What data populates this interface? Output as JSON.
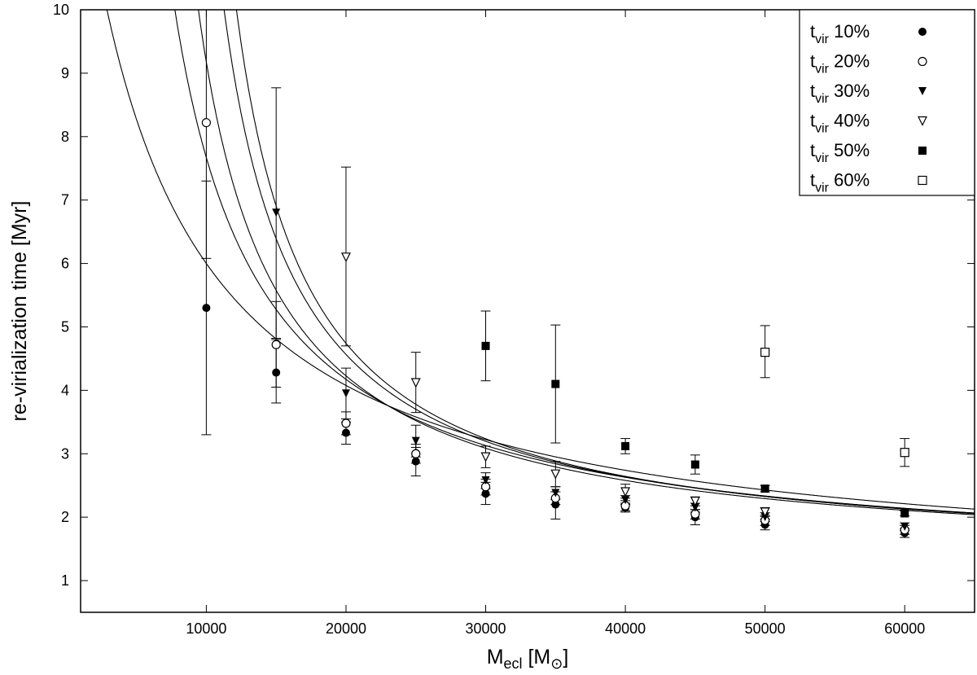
{
  "chart_data": {
    "type": "scatter",
    "xlabel": {
      "main": "M",
      "sub": "ecl",
      "unit_open": " [M",
      "unit_sub": "⊙",
      "unit_close": "]"
    },
    "ylabel": "re-virialization time [Myr]",
    "xlim": [
      1000,
      65000
    ],
    "ylim": [
      0.5,
      10
    ],
    "xticks": [
      10000,
      20000,
      30000,
      40000,
      50000,
      60000
    ],
    "yticks": [
      1,
      2,
      3,
      4,
      5,
      6,
      7,
      8,
      9,
      10
    ],
    "grid": false,
    "legend_position": "top-right",
    "series": [
      {
        "name_main": "t",
        "name_sub": "vir",
        "name_rest": " 10%",
        "marker": "filled-circle",
        "points": [
          {
            "x": 10000,
            "y": 5.3,
            "lo": 3.3,
            "hi": 7.3
          },
          {
            "x": 15000,
            "y": 4.28,
            "lo": 3.8,
            "hi": 4.8
          },
          {
            "x": 20000,
            "y": 3.33,
            "lo": 3.15,
            "hi": 3.5
          },
          {
            "x": 25000,
            "y": 2.88,
            "lo": 2.65,
            "hi": 3.1
          },
          {
            "x": 30000,
            "y": 2.37,
            "lo": 2.2,
            "hi": 2.55
          },
          {
            "x": 35000,
            "y": 2.2,
            "lo": 1.97,
            "hi": 2.4
          },
          {
            "x": 40000,
            "y": 2.15,
            "lo": 2.08,
            "hi": 2.22
          },
          {
            "x": 45000,
            "y": 2.0,
            "lo": 1.88,
            "hi": 2.12
          },
          {
            "x": 50000,
            "y": 1.88,
            "lo": 1.8,
            "hi": 1.97
          },
          {
            "x": 60000,
            "y": 1.75,
            "lo": 1.68,
            "hi": 1.82
          }
        ]
      },
      {
        "name_main": "t",
        "name_sub": "vir",
        "name_rest": " 20%",
        "marker": "open-circle",
        "points": [
          {
            "x": 10000,
            "y": 8.22,
            "lo": 6.08,
            "hi": 10.4
          },
          {
            "x": 15000,
            "y": 4.72,
            "lo": 4.05,
            "hi": 5.4
          },
          {
            "x": 20000,
            "y": 3.48,
            "lo": 3.3,
            "hi": 3.66
          },
          {
            "x": 25000,
            "y": 3.0,
            "lo": 2.85,
            "hi": 3.15
          },
          {
            "x": 30000,
            "y": 2.48,
            "lo": 2.35,
            "hi": 2.6
          },
          {
            "x": 35000,
            "y": 2.3,
            "lo": 2.2,
            "hi": 2.4
          },
          {
            "x": 40000,
            "y": 2.18,
            "lo": 2.1,
            "hi": 2.26
          },
          {
            "x": 45000,
            "y": 2.05,
            "lo": 1.97,
            "hi": 2.12
          },
          {
            "x": 50000,
            "y": 1.95,
            "lo": 1.87,
            "hi": 2.03
          },
          {
            "x": 60000,
            "y": 1.8,
            "lo": 1.73,
            "hi": 1.87
          }
        ]
      },
      {
        "name_main": "t",
        "name_sub": "vir",
        "name_rest": " 30%",
        "marker": "filled-triangle-down",
        "points": [
          {
            "x": 15000,
            "y": 6.8,
            "lo": 4.82,
            "hi": 8.77
          },
          {
            "x": 20000,
            "y": 3.95,
            "lo": 3.55,
            "hi": 4.35
          },
          {
            "x": 25000,
            "y": 3.2,
            "lo": 2.95,
            "hi": 3.45
          },
          {
            "x": 30000,
            "y": 2.58,
            "lo": 2.45,
            "hi": 2.7
          },
          {
            "x": 35000,
            "y": 2.38,
            "lo": 2.28,
            "hi": 2.48
          },
          {
            "x": 40000,
            "y": 2.27,
            "lo": 2.2,
            "hi": 2.34
          },
          {
            "x": 45000,
            "y": 2.15,
            "lo": 2.08,
            "hi": 2.22
          },
          {
            "x": 50000,
            "y": 2.0,
            "lo": 1.93,
            "hi": 2.07
          },
          {
            "x": 60000,
            "y": 1.85,
            "lo": 1.79,
            "hi": 1.91
          }
        ]
      },
      {
        "name_main": "t",
        "name_sub": "vir",
        "name_rest": " 40%",
        "marker": "open-triangle-down",
        "points": [
          {
            "x": 20000,
            "y": 6.1,
            "lo": 4.7,
            "hi": 7.52
          },
          {
            "x": 25000,
            "y": 4.12,
            "lo": 3.65,
            "hi": 4.6
          },
          {
            "x": 30000,
            "y": 2.95,
            "lo": 2.78,
            "hi": 3.12
          },
          {
            "x": 35000,
            "y": 2.68,
            "lo": 2.48,
            "hi": 2.88
          },
          {
            "x": 40000,
            "y": 2.4,
            "lo": 2.3,
            "hi": 2.52
          },
          {
            "x": 45000,
            "y": 2.25,
            "lo": 2.18,
            "hi": 2.32
          },
          {
            "x": 50000,
            "y": 2.08,
            "lo": 2.01,
            "hi": 2.15
          }
        ]
      },
      {
        "name_main": "t",
        "name_sub": "vir",
        "name_rest": " 50%",
        "marker": "filled-square",
        "points": [
          {
            "x": 30000,
            "y": 4.7,
            "lo": 4.15,
            "hi": 5.25
          },
          {
            "x": 35000,
            "y": 4.1,
            "lo": 3.17,
            "hi": 5.03
          },
          {
            "x": 40000,
            "y": 3.12,
            "lo": 3.0,
            "hi": 3.24
          },
          {
            "x": 45000,
            "y": 2.83,
            "lo": 2.68,
            "hi": 2.98
          },
          {
            "x": 50000,
            "y": 2.45,
            "lo": 2.4,
            "hi": 2.5
          },
          {
            "x": 60000,
            "y": 2.06,
            "lo": 2.02,
            "hi": 2.1
          }
        ]
      },
      {
        "name_main": "t",
        "name_sub": "vir",
        "name_rest": " 60%",
        "marker": "open-square",
        "points": [
          {
            "x": 50000,
            "y": 4.6,
            "lo": 4.2,
            "hi": 5.02
          },
          {
            "x": 60000,
            "y": 3.02,
            "lo": 2.8,
            "hi": 3.24
          }
        ]
      }
    ],
    "fit_curves": [
      {
        "a": 1.28,
        "b": 45000,
        "c": 7000
      },
      {
        "a": 1.28,
        "b": 46000,
        "c": 6000
      },
      {
        "a": 1.26,
        "b": 47500,
        "c": 4000
      },
      {
        "a": 1.2,
        "b": 55000,
        "c": 1500
      },
      {
        "a": 1.0,
        "b": 80000,
        "c": -6000
      }
    ]
  }
}
